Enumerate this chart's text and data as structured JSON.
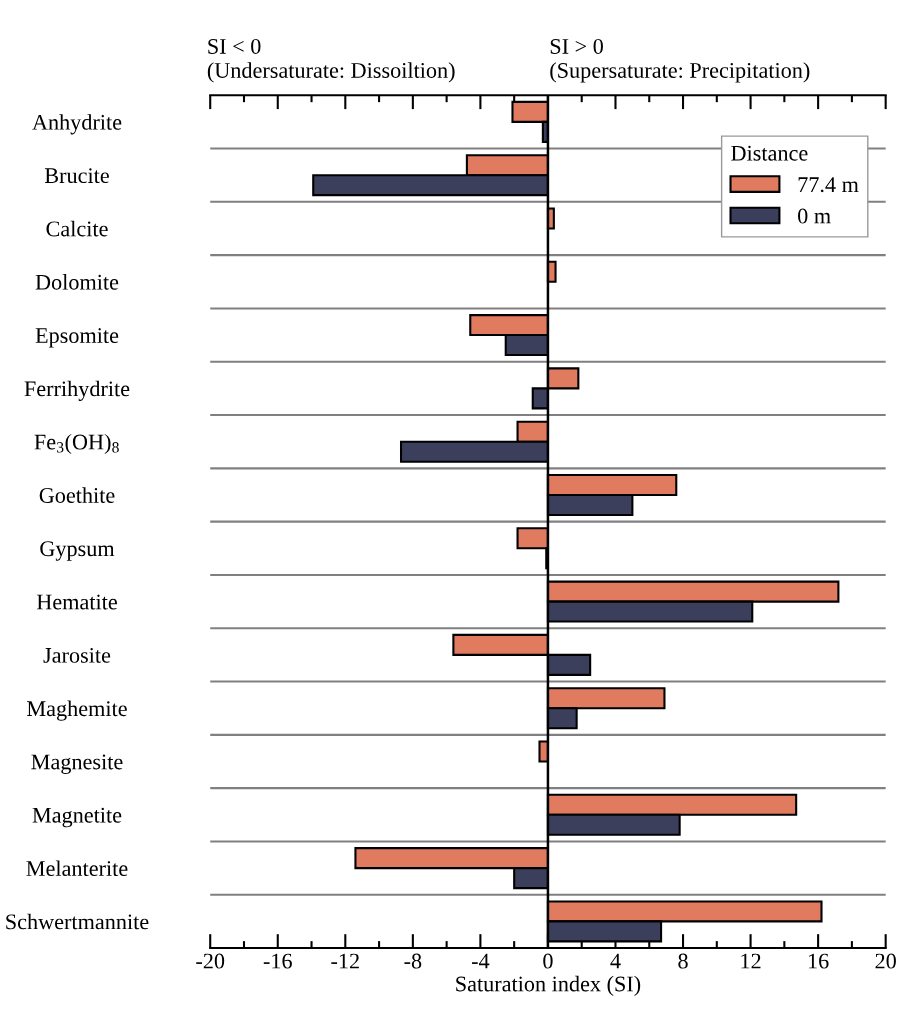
{
  "chart_data": {
    "type": "bar",
    "orientation": "horizontal",
    "categories": [
      "Anhydrite",
      "Brucite",
      "Calcite",
      "Dolomite",
      "Epsomite",
      "Ferrihydrite",
      "Fe$_{3}$(OH)$_{8}$",
      "Goethite",
      "Gypsum",
      "Hematite",
      "Jarosite",
      "Maghemite",
      "Magnesite",
      "Magnetite",
      "Melanterite",
      "Schwertmannite"
    ],
    "series": [
      {
        "name": "77.4 m",
        "color": "#e07b5f",
        "values": [
          -2.1,
          -4.8,
          0.35,
          0.45,
          -4.6,
          1.8,
          -1.8,
          7.6,
          -1.8,
          17.2,
          -5.6,
          6.9,
          -0.5,
          14.7,
          -11.4,
          16.2
        ]
      },
      {
        "name": "0 m",
        "color": "#3c3f5c",
        "values": [
          -0.3,
          -13.9,
          null,
          null,
          -2.5,
          -0.9,
          -8.7,
          5.0,
          -0.1,
          12.1,
          2.5,
          1.7,
          null,
          7.8,
          -2.0,
          6.7
        ]
      }
    ],
    "xlabel": "Saturation index (SI)",
    "xlim": [
      -20,
      20
    ],
    "xticks": [
      -20,
      {
        "value": -18,
        "label": null
      },
      -16,
      {
        "value": -14,
        "label": null
      },
      -12,
      {
        "value": -10,
        "label": null
      },
      -8,
      {
        "value": -6,
        "label": null
      },
      -4,
      {
        "value": -2,
        "label": null
      },
      0,
      {
        "value": 2,
        "label": null
      },
      4,
      {
        "value": 6,
        "label": null
      },
      8,
      {
        "value": 10,
        "label": null
      },
      12,
      {
        "value": 14,
        "label": null
      },
      16,
      {
        "value": 18,
        "label": null
      },
      20
    ],
    "legend_title": "Distance",
    "legend": "top right",
    "grid": "y",
    "ref_lines": [
      {
        "axis": "x",
        "value": 0,
        "color": "#000000"
      }
    ],
    "annotations": [
      "SI < 0\n(Undersaturate: Dissoiltion)",
      "SI > 0\n(Supersaturate: Precipitation)"
    ]
  }
}
